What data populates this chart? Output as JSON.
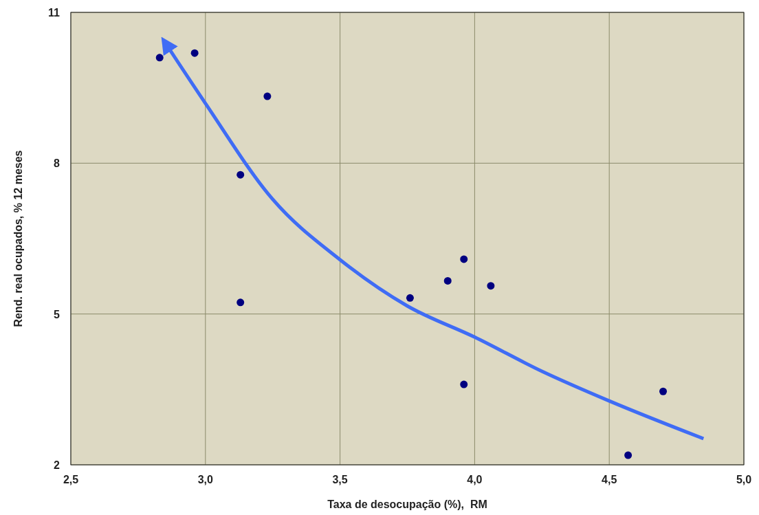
{
  "chart_data": {
    "type": "scatter",
    "xlabel": "Taxa de desocupação (%),  RM",
    "ylabel": "Rend. real ocupados, % 12 meses",
    "xlim": [
      2.5,
      5.0
    ],
    "xticks": [
      {
        "value": 2.5,
        "label": "2,5"
      },
      {
        "value": 3.0,
        "label": "3,0"
      },
      {
        "value": 3.5,
        "label": "3,5"
      },
      {
        "value": 4.0,
        "label": "4,0"
      },
      {
        "value": 4.5,
        "label": "4,5"
      },
      {
        "value": 5.0,
        "label": "5,0"
      }
    ],
    "ylim": [
      2,
      11
    ],
    "yticks": [
      2,
      5,
      8,
      11
    ],
    "grid": true,
    "series": [
      {
        "marker": "circle",
        "color": "#000080",
        "x": [
          2.83,
          2.96,
          3.23,
          3.13,
          3.13,
          3.76,
          3.9,
          3.96,
          4.06,
          3.96,
          4.7,
          4.57
        ],
        "values": [
          10.1,
          10.19,
          9.33,
          7.77,
          5.23,
          5.32,
          5.66,
          6.09,
          5.56,
          3.6,
          3.46,
          2.19
        ]
      },
      {
        "type": "line",
        "marker": "none",
        "color": "#3f6cf5",
        "x": [
          4.85,
          4.5,
          4.25,
          4.0,
          3.75,
          3.5,
          3.25,
          3.0,
          2.85
        ],
        "values": [
          2.52,
          3.27,
          3.86,
          4.54,
          5.16,
          6.08,
          7.28,
          9.19,
          10.4
        ]
      }
    ]
  }
}
